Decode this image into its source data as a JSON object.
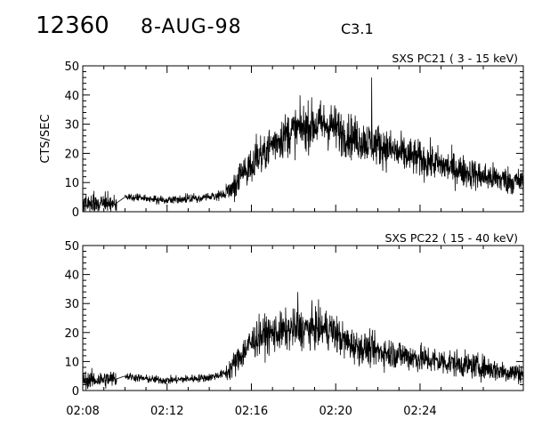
{
  "header": {
    "flare_id": "12360",
    "date": "8-AUG-98",
    "goes_class": "C3.1"
  },
  "chart_data": [
    {
      "type": "line",
      "title": "SXS PC21  (  3 - 15 keV)",
      "ylabel": "CTS/SEC",
      "xlabel": "",
      "ylim": [
        0,
        50
      ],
      "y_ticks": [
        0,
        10,
        20,
        30,
        40,
        50
      ],
      "x_range_minutes": [
        8.0,
        28.9
      ],
      "x_ticks": [
        "02:08",
        "02:12",
        "02:16",
        "02:20",
        "02:24"
      ],
      "series": [
        {
          "mean_profile": [
            [
              8.0,
              2.5
            ],
            [
              9.6,
              3.0
            ],
            [
              10.0,
              5.0
            ],
            [
              11.0,
              4.5
            ],
            [
              12.0,
              4.0
            ],
            [
              13.0,
              4.5
            ],
            [
              14.0,
              5.0
            ],
            [
              14.8,
              6.0
            ],
            [
              15.3,
              10.0
            ],
            [
              15.8,
              15.0
            ],
            [
              16.3,
              19.0
            ],
            [
              16.8,
              22.0
            ],
            [
              17.3,
              25.0
            ],
            [
              17.8,
              27.0
            ],
            [
              18.3,
              28.5
            ],
            [
              18.8,
              29.5
            ],
            [
              19.3,
              30.0
            ],
            [
              19.8,
              29.5
            ],
            [
              20.3,
              27.0
            ],
            [
              21.0,
              25.0
            ],
            [
              22.0,
              23.0
            ],
            [
              23.0,
              20.0
            ],
            [
              24.0,
              18.0
            ],
            [
              25.0,
              16.0
            ],
            [
              26.0,
              14.0
            ],
            [
              27.0,
              12.0
            ],
            [
              28.0,
              11.0
            ],
            [
              28.9,
              10.0
            ]
          ],
          "peak": {
            "x": 21.7,
            "y": 46
          }
        }
      ]
    },
    {
      "type": "line",
      "title": "SXS PC22  ( 15 - 40 keV)",
      "ylabel": "",
      "xlabel": "",
      "ylim": [
        0,
        50
      ],
      "y_ticks": [
        0,
        10,
        20,
        30,
        40,
        50
      ],
      "x_range_minutes": [
        8.0,
        28.9
      ],
      "x_ticks": [
        "02:08",
        "02:12",
        "02:16",
        "02:20",
        "02:24"
      ],
      "series": [
        {
          "mean_profile": [
            [
              8.0,
              3.5
            ],
            [
              9.6,
              4.0
            ],
            [
              10.0,
              5.0
            ],
            [
              11.0,
              4.0
            ],
            [
              12.0,
              3.5
            ],
            [
              13.0,
              4.0
            ],
            [
              14.0,
              4.5
            ],
            [
              14.8,
              6.0
            ],
            [
              15.3,
              10.0
            ],
            [
              15.8,
              15.0
            ],
            [
              16.3,
              18.5
            ],
            [
              16.8,
              19.5
            ],
            [
              17.3,
              20.0
            ],
            [
              18.0,
              21.0
            ],
            [
              19.0,
              21.5
            ],
            [
              19.8,
              21.0
            ],
            [
              20.3,
              17.5
            ],
            [
              21.0,
              15.0
            ],
            [
              22.0,
              13.5
            ],
            [
              23.0,
              12.5
            ],
            [
              24.0,
              11.0
            ],
            [
              25.0,
              10.0
            ],
            [
              26.0,
              9.0
            ],
            [
              27.0,
              8.0
            ],
            [
              28.0,
              6.5
            ],
            [
              28.9,
              6.0
            ]
          ],
          "peak": {
            "x": 18.2,
            "y": 34
          }
        }
      ]
    }
  ]
}
